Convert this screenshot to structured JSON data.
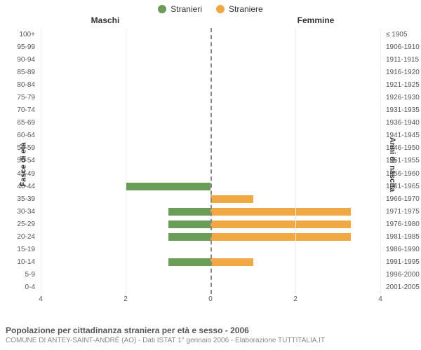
{
  "legend": {
    "items": [
      {
        "label": "Stranieri",
        "color": "#6a9e58"
      },
      {
        "label": "Straniere",
        "color": "#f0a842"
      }
    ]
  },
  "chart": {
    "subheader_left": "Maschi",
    "subheader_right": "Femmine",
    "yaxis_left_title": "Fasce di età",
    "yaxis_right_title": "Anni di nascita",
    "colors": {
      "male_bar": "#6a9e58",
      "female_bar": "#f0a842",
      "grid": "#eeeeee",
      "zero_line": "#888888",
      "background": "#ffffff"
    },
    "x_domain": 4,
    "x_ticks": [
      4,
      2,
      0,
      2,
      4
    ],
    "age_bands": [
      {
        "age": "100+",
        "birth": "≤ 1905",
        "m": 0,
        "f": 0
      },
      {
        "age": "95-99",
        "birth": "1906-1910",
        "m": 0,
        "f": 0
      },
      {
        "age": "90-94",
        "birth": "1911-1915",
        "m": 0,
        "f": 0
      },
      {
        "age": "85-89",
        "birth": "1916-1920",
        "m": 0,
        "f": 0
      },
      {
        "age": "80-84",
        "birth": "1921-1925",
        "m": 0,
        "f": 0
      },
      {
        "age": "75-79",
        "birth": "1926-1930",
        "m": 0,
        "f": 0
      },
      {
        "age": "70-74",
        "birth": "1931-1935",
        "m": 0,
        "f": 0
      },
      {
        "age": "65-69",
        "birth": "1936-1940",
        "m": 0,
        "f": 0
      },
      {
        "age": "60-64",
        "birth": "1941-1945",
        "m": 0,
        "f": 0
      },
      {
        "age": "55-59",
        "birth": "1946-1950",
        "m": 0,
        "f": 0
      },
      {
        "age": "50-54",
        "birth": "1951-1955",
        "m": 0,
        "f": 0
      },
      {
        "age": "45-49",
        "birth": "1956-1960",
        "m": 0,
        "f": 0
      },
      {
        "age": "40-44",
        "birth": "1961-1965",
        "m": 2,
        "f": 0
      },
      {
        "age": "35-39",
        "birth": "1966-1970",
        "m": 0,
        "f": 1
      },
      {
        "age": "30-34",
        "birth": "1971-1975",
        "m": 1,
        "f": 3.3
      },
      {
        "age": "25-29",
        "birth": "1976-1980",
        "m": 1,
        "f": 3.3
      },
      {
        "age": "20-24",
        "birth": "1981-1985",
        "m": 1,
        "f": 3.3
      },
      {
        "age": "15-19",
        "birth": "1986-1990",
        "m": 0,
        "f": 0
      },
      {
        "age": "10-14",
        "birth": "1991-1995",
        "m": 1,
        "f": 1
      },
      {
        "age": "5-9",
        "birth": "1996-2000",
        "m": 0,
        "f": 0
      },
      {
        "age": "0-4",
        "birth": "2001-2005",
        "m": 0,
        "f": 0
      }
    ]
  },
  "caption": {
    "title": "Popolazione per cittadinanza straniera per età e sesso - 2006",
    "subtitle": "COMUNE DI ANTEY-SAINT-ANDRÉ (AO) - Dati ISTAT 1° gennaio 2006 - Elaborazione TUTTITALIA.IT"
  }
}
